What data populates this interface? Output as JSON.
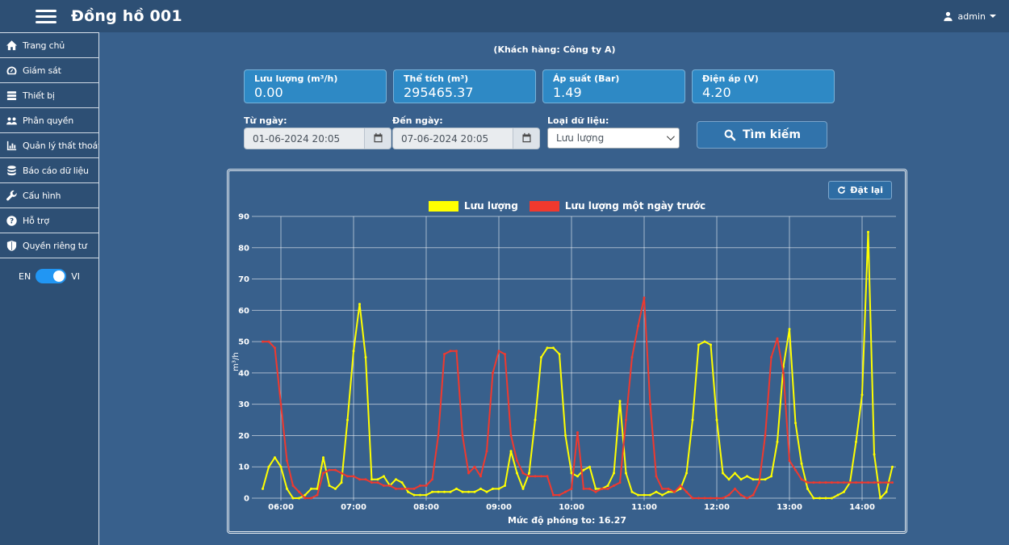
{
  "topbar": {
    "title": "Đồng hồ 001",
    "user": "admin"
  },
  "sidebar": {
    "items": [
      {
        "key": "home",
        "icon": "home-icon",
        "label": "Trang chủ"
      },
      {
        "key": "monitoring",
        "icon": "gauge-icon",
        "label": "Giám sát"
      },
      {
        "key": "devices",
        "icon": "list-icon",
        "label": "Thiết bị"
      },
      {
        "key": "permissions",
        "icon": "users-icon",
        "label": "Phân quyền"
      },
      {
        "key": "loss-management",
        "icon": "bar-chart-icon",
        "label": "Quản lý thất thoát"
      },
      {
        "key": "data-report",
        "icon": "database-icon",
        "label": "Báo cáo dữ liệu"
      },
      {
        "key": "configuration",
        "icon": "wrench-icon",
        "label": "Cấu hình"
      },
      {
        "key": "support",
        "icon": "question-icon",
        "label": "Hỗ trợ"
      },
      {
        "key": "privacy",
        "icon": "shield-icon",
        "label": "Quyền riêng tư"
      }
    ],
    "lang": {
      "left": "EN",
      "right": "VI",
      "selected": "VI"
    }
  },
  "header": {
    "customer": "(Khách hàng: Công ty A)"
  },
  "stats": [
    {
      "key": "flow",
      "label": "Lưu lượng (m³/h)",
      "value": "0.00"
    },
    {
      "key": "volume",
      "label": "Thể tích (m³)",
      "value": "295465.37"
    },
    {
      "key": "pressure",
      "label": "Áp suất (Bar)",
      "value": "1.49"
    },
    {
      "key": "voltage",
      "label": "Điện áp (V)",
      "value": "4.20"
    }
  ],
  "filters": {
    "from": {
      "label": "Từ ngày:",
      "value": "01-06-2024 20:05"
    },
    "to": {
      "label": "Đến ngày:",
      "value": "07-06-2024 20:05"
    },
    "type": {
      "label": "Loại dữ liệu:",
      "value": "Lưu lượng"
    },
    "search_label": "Tìm kiếm"
  },
  "chart": {
    "reset_label": "Đặt lại",
    "zoom_text": "Mức độ phóng to: 16.27"
  },
  "colors": {
    "chrome": "#2d4f74",
    "bg": "#38608c",
    "card": "#2e89c5",
    "btn": "#3173ab",
    "toggle": "#2196f3"
  },
  "chart_data": {
    "type": "line",
    "title": "",
    "xlabel": "",
    "ylabel": "m³/h",
    "ylim": [
      0,
      90
    ],
    "ytick_step": 10,
    "grid": true,
    "legend_position": "top",
    "x_ticks": [
      "06:00",
      "07:00",
      "08:00",
      "09:00",
      "10:00",
      "11:00",
      "12:00",
      "13:00",
      "14:00"
    ],
    "x_tick_start_min": 360,
    "x_tick_step_min": 60,
    "x_domain_min": [
      338,
      868
    ],
    "x_start_min": 345,
    "x_step_min": 5,
    "series": [
      {
        "name": "Lưu lượng",
        "color": "#ffff00",
        "values": [
          3,
          10,
          13,
          10,
          3,
          0,
          0,
          1,
          3,
          3,
          13,
          4,
          3,
          5,
          25,
          47,
          62,
          45,
          6,
          6,
          7,
          4,
          6,
          5,
          2,
          1,
          1,
          1,
          2,
          2,
          2,
          2,
          3,
          2,
          2,
          2,
          3,
          2,
          3,
          3,
          4,
          15,
          8,
          3,
          8,
          25,
          45,
          48,
          48,
          46,
          20,
          8,
          7,
          9,
          10,
          3,
          3,
          4,
          8,
          31,
          8,
          2,
          1,
          1,
          1,
          2,
          1,
          2,
          2,
          3,
          8,
          25,
          49,
          50,
          49,
          25,
          8,
          6,
          8,
          6,
          7,
          6,
          6,
          6,
          7,
          18,
          42,
          54,
          24,
          11,
          3,
          0,
          0,
          0,
          0,
          1,
          2,
          5,
          18,
          33,
          85,
          14,
          0,
          2,
          10
        ]
      },
      {
        "name": "Lưu lượng một ngày trước",
        "color": "#f0392e",
        "values": [
          50,
          50,
          48,
          30,
          12,
          4,
          2,
          0,
          0,
          1,
          8,
          9,
          9,
          8,
          7,
          7,
          6,
          6,
          5,
          5,
          4,
          4,
          3,
          3,
          3,
          3,
          4,
          4,
          6,
          20,
          46,
          47,
          47,
          20,
          8,
          10,
          7,
          15,
          40,
          47,
          46,
          20,
          12,
          8,
          7,
          7,
          7,
          7,
          1,
          1,
          2,
          3,
          21,
          3,
          3,
          2,
          3,
          3,
          4,
          5,
          25,
          45,
          55,
          64,
          30,
          7,
          3,
          3,
          2,
          4,
          2,
          0,
          0,
          0,
          0,
          0,
          0,
          1,
          3,
          1,
          0,
          1,
          5,
          20,
          45,
          51,
          40,
          12,
          9,
          6,
          5,
          5,
          5,
          5,
          5,
          5,
          5,
          5,
          5,
          5,
          5,
          5,
          5,
          5,
          5
        ]
      }
    ]
  }
}
